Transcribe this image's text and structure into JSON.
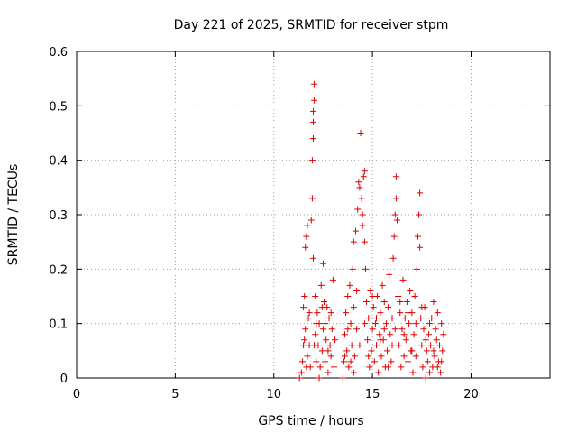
{
  "chart_data": {
    "type": "scatter",
    "title": "Day 221 of 2025, SRMTID for receiver stpm",
    "xlabel": "GPS time / hours",
    "ylabel": "SRMTID / TECUs",
    "xlim": [
      0,
      24
    ],
    "ylim": [
      0,
      0.6
    ],
    "xticks": [
      0,
      5,
      10,
      15,
      20
    ],
    "yticks": [
      0,
      0.1,
      0.2,
      0.3,
      0.4,
      0.5,
      0.6
    ],
    "xtick_labels": [
      "0",
      "5",
      "10",
      "15",
      "20"
    ],
    "ytick_labels": [
      "0",
      "0.1",
      "0.2",
      "0.3",
      "0.4",
      "0.5",
      "0.6"
    ],
    "grid": true,
    "marker": "plus",
    "color": "#e00000",
    "series": [
      {
        "name": "SRMTID",
        "points": [
          [
            11.3,
            0.0
          ],
          [
            11.4,
            0.01
          ],
          [
            11.45,
            0.03
          ],
          [
            11.5,
            0.06
          ],
          [
            11.5,
            0.13
          ],
          [
            11.55,
            0.15
          ],
          [
            11.6,
            0.09
          ],
          [
            11.6,
            0.24
          ],
          [
            11.65,
            0.26
          ],
          [
            11.7,
            0.28
          ],
          [
            11.7,
            0.04
          ],
          [
            11.75,
            0.11
          ],
          [
            11.8,
            0.06
          ],
          [
            11.85,
            0.02
          ],
          [
            11.9,
            0.29
          ],
          [
            11.95,
            0.33
          ],
          [
            11.95,
            0.4
          ],
          [
            12.0,
            0.44
          ],
          [
            12.0,
            0.47
          ],
          [
            12.0,
            0.49
          ],
          [
            12.05,
            0.51
          ],
          [
            12.05,
            0.54
          ],
          [
            12.0,
            0.22
          ],
          [
            12.1,
            0.08
          ],
          [
            12.1,
            0.15
          ],
          [
            12.15,
            0.03
          ],
          [
            12.2,
            0.12
          ],
          [
            12.25,
            0.06
          ],
          [
            12.3,
            0.1
          ],
          [
            12.35,
            0.02
          ],
          [
            12.4,
            0.17
          ],
          [
            12.45,
            0.05
          ],
          [
            12.5,
            0.21
          ],
          [
            12.5,
            0.09
          ],
          [
            12.55,
            0.14
          ],
          [
            12.6,
            0.03
          ],
          [
            12.65,
            0.07
          ],
          [
            12.7,
            0.13
          ],
          [
            12.75,
            0.01
          ],
          [
            12.8,
            0.11
          ],
          [
            12.85,
            0.06
          ],
          [
            12.9,
            0.04
          ],
          [
            12.95,
            0.09
          ],
          [
            13.0,
            0.18
          ],
          [
            13.05,
            0.02
          ],
          [
            13.1,
            0.07
          ],
          [
            13.5,
            0.0
          ],
          [
            13.55,
            0.03
          ],
          [
            13.6,
            0.08
          ],
          [
            13.65,
            0.12
          ],
          [
            13.7,
            0.05
          ],
          [
            13.75,
            0.15
          ],
          [
            13.8,
            0.02
          ],
          [
            13.85,
            0.17
          ],
          [
            13.9,
            0.1
          ],
          [
            13.95,
            0.06
          ],
          [
            14.0,
            0.2
          ],
          [
            14.05,
            0.25
          ],
          [
            14.05,
            0.13
          ],
          [
            14.1,
            0.04
          ],
          [
            14.15,
            0.27
          ],
          [
            14.2,
            0.09
          ],
          [
            14.25,
            0.31
          ],
          [
            14.3,
            0.36
          ],
          [
            14.35,
            0.35
          ],
          [
            14.4,
            0.45
          ],
          [
            14.45,
            0.33
          ],
          [
            14.5,
            0.3
          ],
          [
            14.5,
            0.28
          ],
          [
            14.55,
            0.37
          ],
          [
            14.6,
            0.25
          ],
          [
            14.6,
            0.38
          ],
          [
            14.65,
            0.2
          ],
          [
            14.7,
            0.14
          ],
          [
            14.75,
            0.07
          ],
          [
            14.8,
            0.11
          ],
          [
            14.85,
            0.02
          ],
          [
            14.9,
            0.16
          ],
          [
            14.95,
            0.05
          ],
          [
            15.0,
            0.09
          ],
          [
            15.05,
            0.13
          ],
          [
            15.1,
            0.03
          ],
          [
            15.15,
            0.1
          ],
          [
            15.2,
            0.06
          ],
          [
            15.25,
            0.15
          ],
          [
            15.3,
            0.01
          ],
          [
            15.35,
            0.08
          ],
          [
            15.4,
            0.12
          ],
          [
            15.45,
            0.04
          ],
          [
            15.5,
            0.17
          ],
          [
            15.55,
            0.07
          ],
          [
            15.6,
            0.14
          ],
          [
            15.65,
            0.02
          ],
          [
            15.7,
            0.1
          ],
          [
            15.75,
            0.05
          ],
          [
            15.8,
            0.13
          ],
          [
            15.85,
            0.19
          ],
          [
            15.9,
            0.08
          ],
          [
            15.95,
            0.03
          ],
          [
            16.0,
            0.11
          ],
          [
            16.05,
            0.22
          ],
          [
            16.1,
            0.26
          ],
          [
            16.15,
            0.3
          ],
          [
            16.2,
            0.37
          ],
          [
            16.2,
            0.33
          ],
          [
            16.25,
            0.29
          ],
          [
            16.3,
            0.15
          ],
          [
            16.35,
            0.06
          ],
          [
            16.4,
            0.12
          ],
          [
            16.45,
            0.02
          ],
          [
            16.5,
            0.09
          ],
          [
            16.55,
            0.18
          ],
          [
            16.6,
            0.04
          ],
          [
            16.65,
            0.11
          ],
          [
            16.7,
            0.07
          ],
          [
            16.75,
            0.14
          ],
          [
            16.8,
            0.03
          ],
          [
            16.85,
            0.1
          ],
          [
            16.9,
            0.16
          ],
          [
            16.95,
            0.05
          ],
          [
            17.0,
            0.12
          ],
          [
            17.05,
            0.01
          ],
          [
            17.1,
            0.08
          ],
          [
            17.15,
            0.15
          ],
          [
            17.2,
            0.04
          ],
          [
            17.25,
            0.2
          ],
          [
            17.3,
            0.26
          ],
          [
            17.35,
            0.3
          ],
          [
            17.4,
            0.34
          ],
          [
            17.4,
            0.24
          ],
          [
            17.45,
            0.11
          ],
          [
            17.5,
            0.06
          ],
          [
            17.55,
            0.02
          ],
          [
            17.6,
            0.09
          ],
          [
            17.65,
            0.13
          ],
          [
            17.7,
            0.0
          ],
          [
            17.75,
            0.05
          ],
          [
            17.8,
            0.03
          ],
          [
            17.85,
            0.08
          ],
          [
            17.9,
            0.01
          ],
          [
            17.95,
            0.06
          ],
          [
            18.0,
            0.11
          ],
          [
            18.05,
            0.02
          ],
          [
            18.1,
            0.14
          ],
          [
            18.15,
            0.04
          ],
          [
            18.2,
            0.09
          ],
          [
            18.25,
            0.07
          ],
          [
            18.3,
            0.12
          ],
          [
            18.35,
            0.03
          ],
          [
            18.4,
            0.06
          ],
          [
            18.45,
            0.01
          ],
          [
            18.5,
            0.1
          ],
          [
            18.55,
            0.05
          ],
          [
            18.6,
            0.08
          ],
          [
            11.55,
            0.07
          ],
          [
            11.65,
            0.02
          ],
          [
            11.8,
            0.12
          ],
          [
            12.15,
            0.1
          ],
          [
            12.3,
            0.0
          ],
          [
            12.45,
            0.13
          ],
          [
            12.6,
            0.1
          ],
          [
            12.75,
            0.05
          ],
          [
            12.9,
            0.12
          ],
          [
            13.6,
            0.04
          ],
          [
            13.75,
            0.09
          ],
          [
            13.9,
            0.03
          ],
          [
            14.2,
            0.16
          ],
          [
            14.35,
            0.06
          ],
          [
            14.6,
            0.1
          ],
          [
            14.8,
            0.04
          ],
          [
            15.0,
            0.15
          ],
          [
            15.2,
            0.11
          ],
          [
            15.4,
            0.07
          ],
          [
            15.6,
            0.09
          ],
          [
            15.8,
            0.02
          ],
          [
            16.0,
            0.06
          ],
          [
            16.15,
            0.09
          ],
          [
            16.4,
            0.14
          ],
          [
            16.6,
            0.08
          ],
          [
            16.8,
            0.12
          ],
          [
            17.0,
            0.05
          ],
          [
            17.2,
            0.1
          ],
          [
            17.5,
            0.13
          ],
          [
            17.7,
            0.07
          ],
          [
            17.9,
            0.1
          ],
          [
            18.1,
            0.05
          ],
          [
            18.3,
            0.02
          ],
          [
            18.5,
            0.03
          ],
          [
            12.05,
            0.06
          ],
          [
            14.05,
            0.01
          ]
        ]
      }
    ]
  }
}
